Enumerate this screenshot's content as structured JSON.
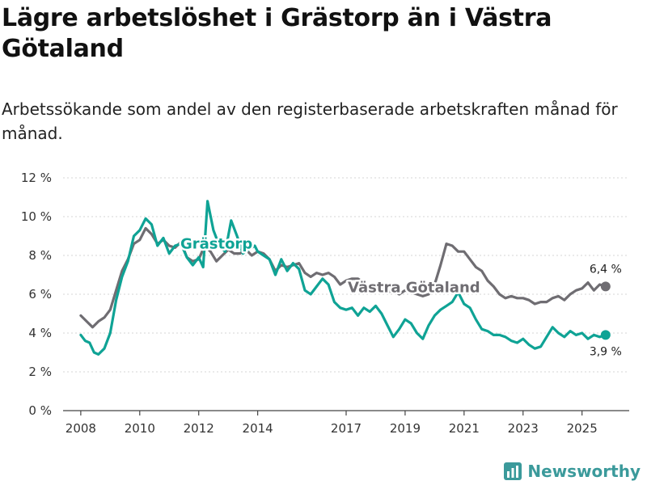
{
  "title": "Lägre arbetslöshet i Grästorp än i Västra Götaland",
  "subtitle": "Arbetssökande som andel av den registerbaserade arbetskraften månad för månad.",
  "brand": "Newsworthy",
  "chart_data": {
    "type": "line",
    "xlabel": "",
    "ylabel": "",
    "xlim": [
      2007.4,
      2026.6
    ],
    "ylim": [
      0,
      12
    ],
    "y_ticks": [
      {
        "value": 0,
        "label": "0 %"
      },
      {
        "value": 2,
        "label": "2 %"
      },
      {
        "value": 4,
        "label": "4 %"
      },
      {
        "value": 6,
        "label": "6 %"
      },
      {
        "value": 8,
        "label": "8 %"
      },
      {
        "value": 10,
        "label": "10 %"
      },
      {
        "value": 12,
        "label": "12 %"
      }
    ],
    "x_ticks": [
      {
        "value": 2008,
        "label": "2008"
      },
      {
        "value": 2010,
        "label": "2010"
      },
      {
        "value": 2012,
        "label": "2012"
      },
      {
        "value": 2014,
        "label": "2014"
      },
      {
        "value": 2017,
        "label": "2017"
      },
      {
        "value": 2019,
        "label": "2019"
      },
      {
        "value": 2021,
        "label": "2021"
      },
      {
        "value": 2023,
        "label": "2023"
      },
      {
        "value": 2025,
        "label": "2025"
      }
    ],
    "grid": true,
    "series": [
      {
        "name": "Västra Götaland",
        "color": "#6f6d72",
        "label_at": {
          "x": 2019.3,
          "y": 6.1
        },
        "end_label": "6,4 %",
        "points": [
          [
            2008.0,
            4.9
          ],
          [
            2008.2,
            4.6
          ],
          [
            2008.4,
            4.3
          ],
          [
            2008.6,
            4.6
          ],
          [
            2008.8,
            4.8
          ],
          [
            2009.0,
            5.2
          ],
          [
            2009.2,
            6.2
          ],
          [
            2009.4,
            7.2
          ],
          [
            2009.6,
            7.8
          ],
          [
            2009.8,
            8.6
          ],
          [
            2010.0,
            8.8
          ],
          [
            2010.2,
            9.4
          ],
          [
            2010.4,
            9.1
          ],
          [
            2010.6,
            8.6
          ],
          [
            2010.8,
            8.8
          ],
          [
            2011.0,
            8.5
          ],
          [
            2011.2,
            8.4
          ],
          [
            2011.4,
            8.7
          ],
          [
            2011.6,
            7.9
          ],
          [
            2011.8,
            7.7
          ],
          [
            2012.0,
            7.8
          ],
          [
            2012.2,
            8.5
          ],
          [
            2012.4,
            8.2
          ],
          [
            2012.6,
            7.7
          ],
          [
            2012.8,
            8.0
          ],
          [
            2013.0,
            8.3
          ],
          [
            2013.2,
            8.1
          ],
          [
            2013.4,
            8.1
          ],
          [
            2013.6,
            8.3
          ],
          [
            2013.8,
            8.0
          ],
          [
            2014.0,
            8.2
          ],
          [
            2014.2,
            8.1
          ],
          [
            2014.4,
            7.8
          ],
          [
            2014.6,
            7.2
          ],
          [
            2014.8,
            7.5
          ],
          [
            2015.0,
            7.4
          ],
          [
            2015.2,
            7.5
          ],
          [
            2015.4,
            7.6
          ],
          [
            2015.6,
            7.1
          ],
          [
            2015.8,
            6.9
          ],
          [
            2016.0,
            7.1
          ],
          [
            2016.2,
            7.0
          ],
          [
            2016.4,
            7.1
          ],
          [
            2016.6,
            6.9
          ],
          [
            2016.8,
            6.5
          ],
          [
            2017.0,
            6.7
          ],
          [
            2017.2,
            6.8
          ],
          [
            2017.4,
            6.8
          ],
          [
            2017.6,
            6.6
          ],
          [
            2017.8,
            6.3
          ],
          [
            2018.0,
            6.4
          ],
          [
            2018.2,
            6.3
          ],
          [
            2018.4,
            6.1
          ],
          [
            2018.6,
            6.2
          ],
          [
            2018.8,
            6.0
          ],
          [
            2019.0,
            6.2
          ],
          [
            2019.2,
            6.1
          ],
          [
            2019.4,
            6.0
          ],
          [
            2019.6,
            5.9
          ],
          [
            2019.8,
            6.0
          ],
          [
            2020.0,
            6.5
          ],
          [
            2020.2,
            7.5
          ],
          [
            2020.4,
            8.6
          ],
          [
            2020.6,
            8.5
          ],
          [
            2020.8,
            8.2
          ],
          [
            2021.0,
            8.2
          ],
          [
            2021.2,
            7.8
          ],
          [
            2021.4,
            7.4
          ],
          [
            2021.6,
            7.2
          ],
          [
            2021.8,
            6.7
          ],
          [
            2022.0,
            6.4
          ],
          [
            2022.2,
            6.0
          ],
          [
            2022.4,
            5.8
          ],
          [
            2022.6,
            5.9
          ],
          [
            2022.8,
            5.8
          ],
          [
            2023.0,
            5.8
          ],
          [
            2023.2,
            5.7
          ],
          [
            2023.4,
            5.5
          ],
          [
            2023.6,
            5.6
          ],
          [
            2023.8,
            5.6
          ],
          [
            2024.0,
            5.8
          ],
          [
            2024.2,
            5.9
          ],
          [
            2024.4,
            5.7
          ],
          [
            2024.6,
            6.0
          ],
          [
            2024.8,
            6.2
          ],
          [
            2025.0,
            6.3
          ],
          [
            2025.2,
            6.6
          ],
          [
            2025.4,
            6.2
          ],
          [
            2025.6,
            6.5
          ],
          [
            2025.8,
            6.4
          ]
        ]
      },
      {
        "name": "Grästorp",
        "color": "#0fa395",
        "label_at": {
          "x": 2012.6,
          "y": 8.35
        },
        "end_label": "3,9 %",
        "points": [
          [
            2008.0,
            3.9
          ],
          [
            2008.15,
            3.6
          ],
          [
            2008.3,
            3.5
          ],
          [
            2008.45,
            3.0
          ],
          [
            2008.6,
            2.9
          ],
          [
            2008.8,
            3.2
          ],
          [
            2009.0,
            4.0
          ],
          [
            2009.2,
            5.7
          ],
          [
            2009.4,
            6.9
          ],
          [
            2009.6,
            7.7
          ],
          [
            2009.8,
            9.0
          ],
          [
            2010.0,
            9.3
          ],
          [
            2010.2,
            9.9
          ],
          [
            2010.4,
            9.6
          ],
          [
            2010.6,
            8.5
          ],
          [
            2010.8,
            8.9
          ],
          [
            2011.0,
            8.1
          ],
          [
            2011.2,
            8.5
          ],
          [
            2011.4,
            8.6
          ],
          [
            2011.6,
            7.9
          ],
          [
            2011.8,
            7.5
          ],
          [
            2012.0,
            7.9
          ],
          [
            2012.15,
            7.4
          ],
          [
            2012.3,
            10.8
          ],
          [
            2012.5,
            9.3
          ],
          [
            2012.7,
            8.5
          ],
          [
            2012.9,
            8.2
          ],
          [
            2013.0,
            9.0
          ],
          [
            2013.1,
            9.8
          ],
          [
            2013.3,
            9.0
          ],
          [
            2013.5,
            8.1
          ],
          [
            2013.7,
            8.3
          ],
          [
            2013.9,
            8.5
          ],
          [
            2014.0,
            8.2
          ],
          [
            2014.2,
            8.0
          ],
          [
            2014.4,
            7.8
          ],
          [
            2014.6,
            7.0
          ],
          [
            2014.8,
            7.8
          ],
          [
            2015.0,
            7.2
          ],
          [
            2015.2,
            7.6
          ],
          [
            2015.4,
            7.3
          ],
          [
            2015.6,
            6.2
          ],
          [
            2015.8,
            6.0
          ],
          [
            2016.0,
            6.4
          ],
          [
            2016.2,
            6.8
          ],
          [
            2016.4,
            6.5
          ],
          [
            2016.6,
            5.6
          ],
          [
            2016.8,
            5.3
          ],
          [
            2017.0,
            5.2
          ],
          [
            2017.2,
            5.3
          ],
          [
            2017.4,
            4.9
          ],
          [
            2017.6,
            5.3
          ],
          [
            2017.8,
            5.1
          ],
          [
            2018.0,
            5.4
          ],
          [
            2018.2,
            5.0
          ],
          [
            2018.4,
            4.4
          ],
          [
            2018.6,
            3.8
          ],
          [
            2018.8,
            4.2
          ],
          [
            2019.0,
            4.7
          ],
          [
            2019.2,
            4.5
          ],
          [
            2019.4,
            4.0
          ],
          [
            2019.6,
            3.7
          ],
          [
            2019.8,
            4.4
          ],
          [
            2020.0,
            4.9
          ],
          [
            2020.2,
            5.2
          ],
          [
            2020.4,
            5.4
          ],
          [
            2020.6,
            5.6
          ],
          [
            2020.8,
            6.1
          ],
          [
            2021.0,
            5.5
          ],
          [
            2021.2,
            5.3
          ],
          [
            2021.4,
            4.7
          ],
          [
            2021.6,
            4.2
          ],
          [
            2021.8,
            4.1
          ],
          [
            2022.0,
            3.9
          ],
          [
            2022.2,
            3.9
          ],
          [
            2022.4,
            3.8
          ],
          [
            2022.6,
            3.6
          ],
          [
            2022.8,
            3.5
          ],
          [
            2023.0,
            3.7
          ],
          [
            2023.2,
            3.4
          ],
          [
            2023.4,
            3.2
          ],
          [
            2023.6,
            3.3
          ],
          [
            2023.8,
            3.8
          ],
          [
            2024.0,
            4.3
          ],
          [
            2024.2,
            4.0
          ],
          [
            2024.4,
            3.8
          ],
          [
            2024.6,
            4.1
          ],
          [
            2024.8,
            3.9
          ],
          [
            2025.0,
            4.0
          ],
          [
            2025.2,
            3.7
          ],
          [
            2025.4,
            3.9
          ],
          [
            2025.6,
            3.8
          ],
          [
            2025.8,
            3.9
          ]
        ]
      }
    ]
  }
}
